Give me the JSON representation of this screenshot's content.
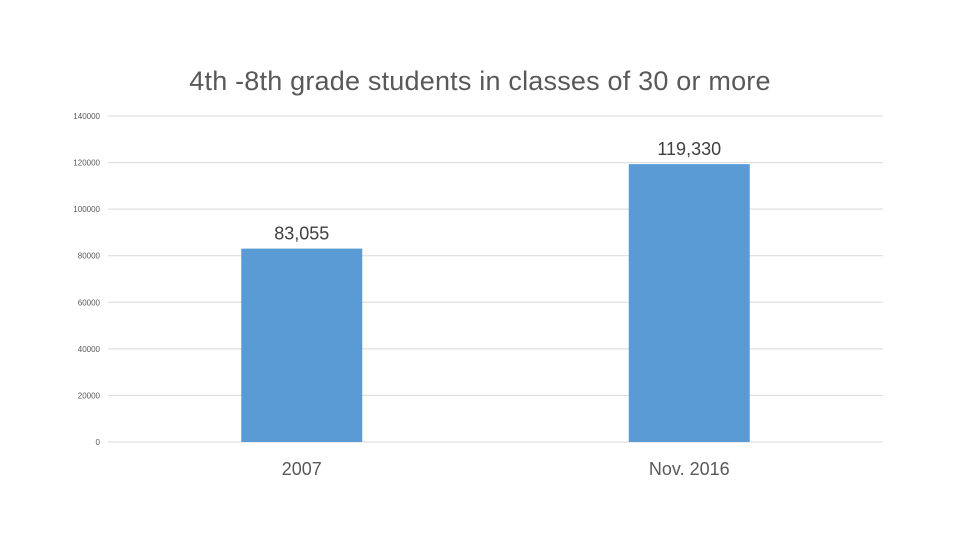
{
  "colors": {
    "bar": "#5b9bd5",
    "gridline": "#d9d9d9",
    "axis_text": "#595959",
    "title_text": "#595959",
    "label_text": "#404040"
  },
  "chart_data": {
    "type": "bar",
    "title": "4th -8th grade students in classes of 30 or more",
    "categories": [
      "2007",
      "Nov. 2016"
    ],
    "values": [
      83055,
      119330
    ],
    "data_labels": [
      "83,055",
      "119,330"
    ],
    "xlabel": "",
    "ylabel": "",
    "ylim": [
      0,
      140000
    ],
    "yticks": [
      0,
      20000,
      40000,
      60000,
      80000,
      100000,
      120000,
      140000
    ],
    "ytick_labels": [
      "0",
      "20000",
      "40000",
      "60000",
      "80000",
      "100000",
      "120000",
      "140000"
    ],
    "grid": true,
    "legend": "none"
  }
}
